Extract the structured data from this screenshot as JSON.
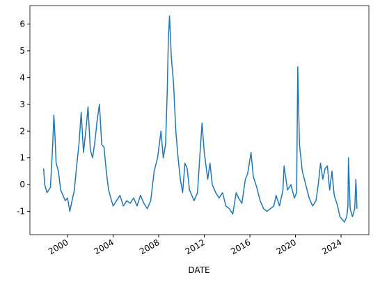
{
  "chart_data": {
    "type": "line",
    "xlabel": "DATE",
    "x": [
      1997.9,
      1998.0,
      1998.2,
      1998.5,
      1998.7,
      1998.8,
      1998.9,
      1999.0,
      1999.2,
      1999.4,
      1999.6,
      1999.8,
      2000.0,
      2000.2,
      2000.4,
      2000.6,
      2000.8,
      2001.0,
      2001.2,
      2001.4,
      2001.6,
      2001.8,
      2002.0,
      2002.2,
      2002.4,
      2002.6,
      2002.8,
      2003.0,
      2003.2,
      2003.4,
      2003.6,
      2003.8,
      2004.0,
      2004.3,
      2004.6,
      2004.9,
      2005.2,
      2005.5,
      2005.8,
      2006.1,
      2006.4,
      2006.7,
      2007.0,
      2007.3,
      2007.6,
      2007.9,
      2008.2,
      2008.4,
      2008.6,
      2008.75,
      2008.85,
      2008.95,
      2009.1,
      2009.3,
      2009.5,
      2009.7,
      2009.9,
      2010.1,
      2010.3,
      2010.5,
      2010.7,
      2010.9,
      2011.1,
      2011.4,
      2011.6,
      2011.8,
      2012.0,
      2012.3,
      2012.5,
      2012.7,
      2013.0,
      2013.3,
      2013.6,
      2013.9,
      2014.2,
      2014.5,
      2014.8,
      2015.0,
      2015.3,
      2015.6,
      2015.8,
      2016.1,
      2016.3,
      2016.6,
      2016.9,
      2017.2,
      2017.5,
      2017.8,
      2018.1,
      2018.3,
      2018.6,
      2018.9,
      2019.0,
      2019.3,
      2019.6,
      2019.9,
      2020.1,
      2020.2,
      2020.35,
      2020.6,
      2020.9,
      2021.2,
      2021.5,
      2021.8,
      2022.0,
      2022.2,
      2022.4,
      2022.6,
      2022.8,
      2023.0,
      2023.2,
      2023.4,
      2023.7,
      2023.9,
      2024.1,
      2024.3,
      2024.5,
      2024.6,
      2024.65,
      2024.8,
      2025.0,
      2025.2,
      2025.3,
      2025.4
    ],
    "series": [
      {
        "color": "#1f77b4",
        "values": [
          0.6,
          0.0,
          -0.3,
          -0.1,
          1.5,
          2.6,
          1.8,
          0.8,
          0.5,
          -0.2,
          -0.4,
          -0.6,
          -0.5,
          -1.0,
          -0.6,
          -0.2,
          0.7,
          1.5,
          2.7,
          1.2,
          2.0,
          2.9,
          1.3,
          1.0,
          1.6,
          2.4,
          3.0,
          1.5,
          1.4,
          0.5,
          -0.2,
          -0.5,
          -0.8,
          -0.6,
          -0.4,
          -0.8,
          -0.6,
          -0.7,
          -0.5,
          -0.8,
          -0.4,
          -0.7,
          -0.9,
          -0.6,
          0.5,
          1.0,
          2.0,
          1.0,
          1.5,
          3.5,
          5.5,
          6.3,
          4.8,
          3.8,
          2.0,
          1.0,
          0.2,
          -0.3,
          0.8,
          0.6,
          -0.2,
          -0.4,
          -0.6,
          -0.3,
          1.0,
          2.3,
          1.2,
          0.2,
          0.8,
          0.0,
          -0.3,
          -0.5,
          -0.3,
          -0.8,
          -0.9,
          -1.1,
          -0.3,
          -0.5,
          -0.7,
          0.2,
          0.4,
          1.2,
          0.3,
          -0.1,
          -0.6,
          -0.9,
          -1.0,
          -0.9,
          -0.8,
          -0.4,
          -0.8,
          -0.2,
          0.7,
          -0.2,
          0.0,
          -0.5,
          -0.3,
          4.4,
          1.5,
          0.5,
          0.0,
          -0.5,
          -0.8,
          -0.6,
          0.0,
          0.8,
          0.2,
          0.6,
          0.7,
          -0.2,
          0.5,
          -0.4,
          -0.8,
          -1.2,
          -1.3,
          -1.4,
          -1.2,
          -0.8,
          1.0,
          -0.9,
          -1.2,
          -0.9,
          0.2,
          -0.9
        ]
      }
    ],
    "xlim": [
      1996.7,
      2026.44
    ],
    "xticks": [
      2000,
      2004,
      2008,
      2012,
      2016,
      2020,
      2024
    ],
    "ylim": [
      -1.87,
      6.69
    ],
    "yticks": [
      -1,
      0,
      1,
      2,
      3,
      4,
      5,
      6
    ]
  }
}
